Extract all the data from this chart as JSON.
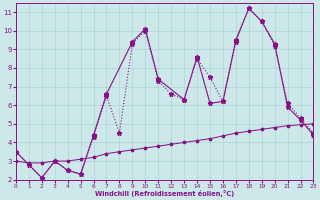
{
  "xlabel": "Windchill (Refroidissement éolien,°C)",
  "background_color": "#cce8e8",
  "grid_color": "#aad4d4",
  "line_color": "#881188",
  "xlim": [
    0,
    23
  ],
  "ylim": [
    2,
    11.5
  ],
  "yticks": [
    2,
    3,
    4,
    5,
    6,
    7,
    8,
    9,
    10,
    11
  ],
  "xticks": [
    0,
    1,
    2,
    3,
    4,
    5,
    6,
    7,
    8,
    9,
    10,
    11,
    12,
    13,
    14,
    15,
    16,
    17,
    18,
    19,
    20,
    21,
    22,
    23
  ],
  "line1_x": [
    0,
    1,
    2,
    3,
    4,
    5,
    6,
    7,
    8,
    9,
    10,
    11,
    12,
    13,
    14,
    15,
    16,
    17,
    18,
    19,
    20,
    21,
    22,
    23
  ],
  "line1_y": [
    3.5,
    2.8,
    2.1,
    3.0,
    2.5,
    2.3,
    4.3,
    6.5,
    4.5,
    9.3,
    10.0,
    7.3,
    6.6,
    6.3,
    8.5,
    7.5,
    6.2,
    9.4,
    11.2,
    10.5,
    9.2,
    6.1,
    5.3,
    4.5
  ],
  "line1_style": ":",
  "line2_x": [
    0,
    2,
    3,
    4,
    5,
    6,
    7,
    9,
    10,
    11,
    13,
    14,
    15,
    16,
    17,
    18,
    19,
    20,
    21,
    22,
    23
  ],
  "line2_y": [
    3.5,
    2.1,
    3.0,
    2.5,
    2.3,
    4.4,
    6.6,
    9.4,
    10.1,
    7.4,
    6.3,
    8.6,
    6.1,
    6.2,
    9.5,
    11.2,
    10.5,
    9.3,
    5.9,
    5.2,
    4.4
  ],
  "line2_style": "-",
  "line3_x": [
    0,
    1,
    2,
    3,
    4,
    5,
    6,
    7,
    8,
    9,
    10,
    11,
    12,
    13,
    14,
    15,
    16,
    17,
    18,
    19,
    20,
    21,
    22,
    23
  ],
  "line3_y": [
    3.0,
    2.9,
    2.9,
    3.0,
    3.0,
    3.1,
    3.2,
    3.4,
    3.5,
    3.6,
    3.7,
    3.8,
    3.9,
    4.0,
    4.1,
    4.2,
    4.35,
    4.5,
    4.6,
    4.7,
    4.8,
    4.9,
    4.95,
    5.0
  ],
  "line3_style": "-",
  "marker": "*",
  "markersize": 3.5,
  "linewidth": 0.8
}
